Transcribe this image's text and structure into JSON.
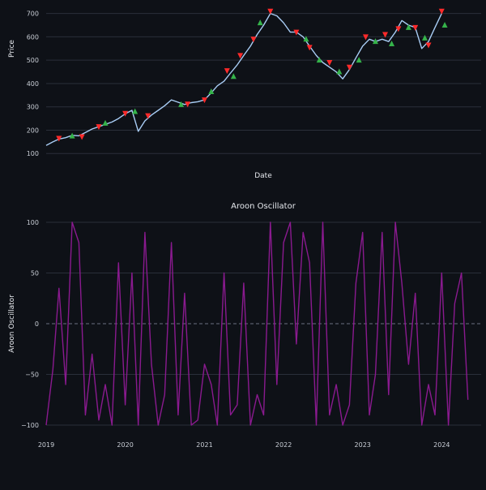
{
  "colors": {
    "background": "#0e1117",
    "grid": "#2a2f3a",
    "price_line": "#a9cdf5",
    "sell_marker": "#ff2a2a",
    "buy_marker": "#35b34a",
    "aroon_line": "#8a1a8f"
  },
  "chart_data": [
    {
      "type": "line",
      "title": "",
      "xlabel": "Date",
      "ylabel": "Price",
      "ylim": [
        80,
        730
      ],
      "yticks": [
        100,
        200,
        300,
        400,
        500,
        600,
        700
      ],
      "ytick_labels": [
        "100",
        "200",
        "300",
        "400",
        "500",
        "600",
        "700"
      ],
      "xlim": [
        "2019-01-01",
        "2024-07-01"
      ],
      "grid": true,
      "series": [
        {
          "x": [
            "2019-01-01",
            "2019-02-01",
            "2019-03-01",
            "2019-04-01",
            "2019-05-01",
            "2019-06-01",
            "2019-07-01",
            "2019-08-01",
            "2019-09-01",
            "2019-10-01",
            "2019-11-01",
            "2019-12-01",
            "2020-01-01",
            "2020-02-01",
            "2020-03-01",
            "2020-04-01",
            "2020-05-01",
            "2020-06-01",
            "2020-07-01",
            "2020-08-01",
            "2020-09-01",
            "2020-10-01",
            "2020-11-01",
            "2020-12-01",
            "2021-01-01",
            "2021-02-01",
            "2021-03-01",
            "2021-04-01",
            "2021-05-01",
            "2021-06-01",
            "2021-07-01",
            "2021-08-01",
            "2021-09-01",
            "2021-10-01",
            "2021-11-01",
            "2021-12-01",
            "2022-01-01",
            "2022-02-01",
            "2022-03-01",
            "2022-04-01",
            "2022-05-01",
            "2022-06-01",
            "2022-07-01",
            "2022-08-01",
            "2022-09-01",
            "2022-10-01",
            "2022-11-01",
            "2022-12-01",
            "2023-01-01",
            "2023-02-01",
            "2023-03-01",
            "2023-04-01",
            "2023-05-01",
            "2023-06-01",
            "2023-07-01",
            "2023-08-01",
            "2023-09-01",
            "2023-10-01",
            "2023-11-01",
            "2023-12-01",
            "2024-01-01"
          ],
          "values": [
            135,
            150,
            162,
            168,
            178,
            176,
            190,
            205,
            215,
            225,
            235,
            250,
            270,
            285,
            195,
            240,
            265,
            285,
            305,
            330,
            320,
            310,
            318,
            322,
            330,
            360,
            390,
            410,
            445,
            480,
            520,
            560,
            610,
            650,
            700,
            690,
            660,
            620,
            620,
            600,
            560,
            520,
            490,
            470,
            450,
            420,
            460,
            510,
            560,
            590,
            580,
            590,
            580,
            620,
            670,
            650,
            640,
            550,
            580,
            640,
            700
          ]
        }
      ],
      "markers": {
        "sell": {
          "x": [
            "2019-03-01",
            "2019-06-15",
            "2019-09-01",
            "2020-01-01",
            "2020-04-15",
            "2020-10-15",
            "2021-01-01",
            "2021-04-15",
            "2021-06-15",
            "2021-08-15",
            "2021-11-01",
            "2022-03-01",
            "2022-05-01",
            "2022-08-01",
            "2022-11-01",
            "2023-01-15",
            "2023-04-15",
            "2023-06-15",
            "2023-09-01",
            "2023-11-01",
            "2024-01-01"
          ],
          "values": [
            165,
            172,
            215,
            272,
            262,
            312,
            330,
            455,
            520,
            590,
            710,
            620,
            555,
            490,
            470,
            600,
            610,
            635,
            640,
            565,
            710
          ]
        },
        "buy": {
          "x": [
            "2019-05-01",
            "2019-10-01",
            "2020-02-15",
            "2020-09-15",
            "2021-02-01",
            "2021-05-15",
            "2021-09-15",
            "2022-04-15",
            "2022-06-15",
            "2022-09-15",
            "2022-12-15",
            "2023-03-01",
            "2023-05-15",
            "2023-08-01",
            "2023-10-15",
            "2024-01-15"
          ],
          "values": [
            175,
            230,
            280,
            310,
            365,
            430,
            660,
            590,
            500,
            450,
            500,
            580,
            570,
            640,
            595,
            650
          ]
        }
      }
    },
    {
      "type": "line",
      "title": "Aroon Oscillator",
      "xlabel": "",
      "ylabel": "Aroon Oscillator",
      "ylim": [
        -100,
        100
      ],
      "yticks": [
        -100,
        -50,
        0,
        50,
        100
      ],
      "ytick_labels": [
        "−100",
        "−50",
        "0",
        "50",
        "100"
      ],
      "xlim": [
        "2019-01-01",
        "2024-07-01"
      ],
      "xticks": [
        "2019-01-01",
        "2020-01-01",
        "2021-01-01",
        "2022-01-01",
        "2023-01-01",
        "2024-01-01"
      ],
      "xtick_labels": [
        "2019",
        "2020",
        "2021",
        "2022",
        "2023",
        "2024"
      ],
      "zero_line": true,
      "grid": true,
      "series": [
        {
          "x": [
            "2019-01-01",
            "2019-02-01",
            "2019-03-01",
            "2019-04-01",
            "2019-05-01",
            "2019-06-01",
            "2019-07-01",
            "2019-08-01",
            "2019-09-01",
            "2019-10-01",
            "2019-11-01",
            "2019-12-01",
            "2020-01-01",
            "2020-02-01",
            "2020-03-01",
            "2020-04-01",
            "2020-05-01",
            "2020-06-01",
            "2020-07-01",
            "2020-08-01",
            "2020-09-01",
            "2020-10-01",
            "2020-11-01",
            "2020-12-01",
            "2021-01-01",
            "2021-02-01",
            "2021-03-01",
            "2021-04-01",
            "2021-05-01",
            "2021-06-01",
            "2021-07-01",
            "2021-08-01",
            "2021-09-01",
            "2021-10-01",
            "2021-11-01",
            "2021-12-01",
            "2022-01-01",
            "2022-02-01",
            "2022-03-01",
            "2022-04-01",
            "2022-05-01",
            "2022-06-01",
            "2022-07-01",
            "2022-08-01",
            "2022-09-01",
            "2022-10-01",
            "2022-11-01",
            "2022-12-01",
            "2023-01-01",
            "2023-02-01",
            "2023-03-01",
            "2023-04-01",
            "2023-05-01",
            "2023-06-01",
            "2023-07-01",
            "2023-08-01",
            "2023-09-01",
            "2023-10-01",
            "2023-11-01",
            "2023-12-01",
            "2024-01-01",
            "2024-02-01",
            "2024-03-01",
            "2024-04-01",
            "2024-05-01"
          ],
          "values": [
            -100,
            -45,
            35,
            -60,
            100,
            80,
            -90,
            -30,
            -95,
            -60,
            -100,
            60,
            -80,
            50,
            -100,
            90,
            -40,
            -100,
            -70,
            80,
            -90,
            30,
            -100,
            -95,
            -40,
            -60,
            -100,
            50,
            -90,
            -80,
            40,
            -100,
            -70,
            -90,
            100,
            -60,
            80,
            100,
            -20,
            90,
            60,
            -100,
            100,
            -90,
            -60,
            -100,
            -80,
            40,
            90,
            -90,
            -50,
            90,
            -70,
            100,
            40,
            -40,
            30,
            -100,
            -60,
            -90,
            50,
            -100,
            20,
            50,
            -75
          ]
        }
      ]
    }
  ]
}
